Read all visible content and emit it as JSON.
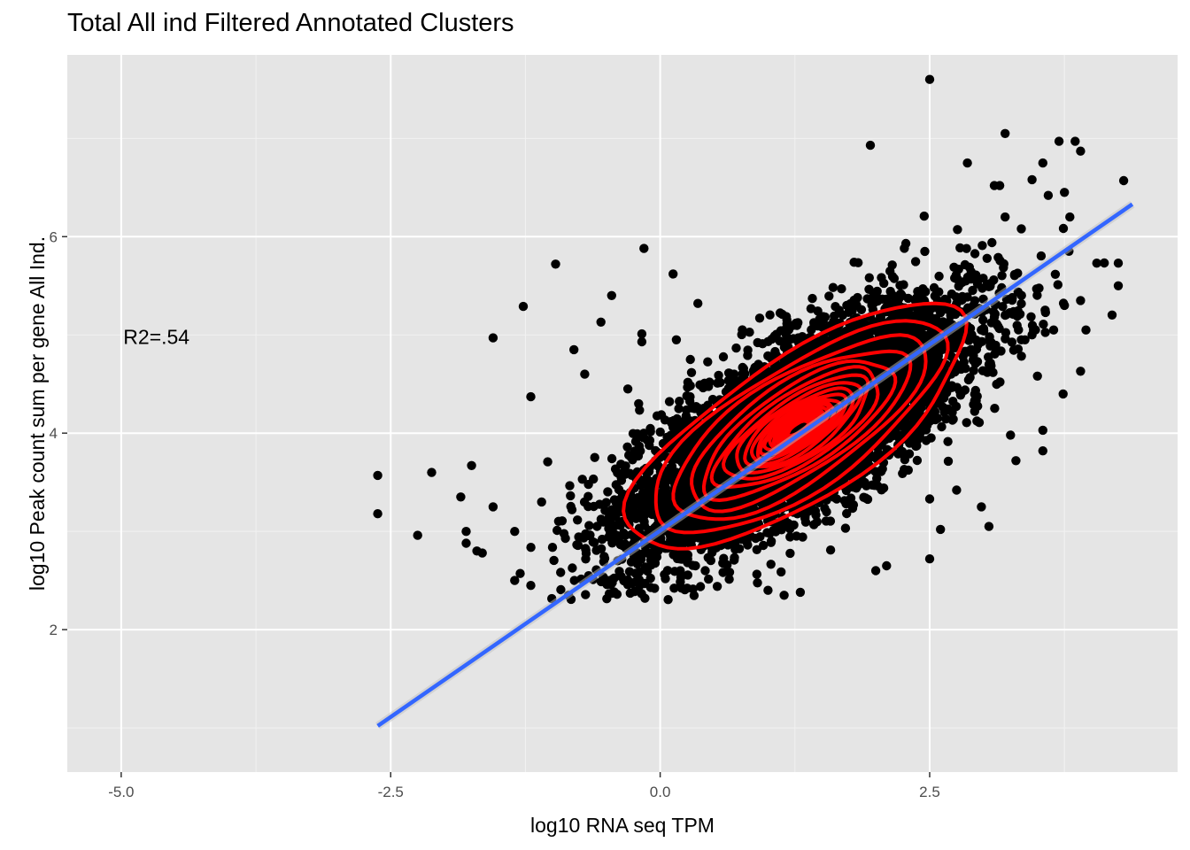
{
  "chart_data": {
    "type": "scatter",
    "title": "Total All ind Filtered Annotated Clusters",
    "xlabel": "log10 RNA seq TPM",
    "ylabel": "log10 Peak count sum per gene All Ind.",
    "xlim": [
      -5.5,
      4.8
    ],
    "ylim": [
      0.55,
      7.85
    ],
    "x_ticks": [
      -5.0,
      -2.5,
      0.0,
      2.5
    ],
    "x_tick_labels": [
      "-5.0",
      "-2.5",
      "0.0",
      "2.5"
    ],
    "y_ticks": [
      2,
      4,
      6
    ],
    "y_tick_labels": [
      "2",
      "4",
      "6"
    ],
    "grid": true,
    "annotation": {
      "text": "R2=.54",
      "x": -4.98,
      "y": 4.98
    },
    "regression_line": {
      "x": [
        -2.62,
        4.38
      ],
      "y": [
        1.02,
        6.33
      ],
      "color": "#3366ff"
    },
    "points": {
      "color": "#000000",
      "n_cloud": 6500,
      "cloud_center": [
        1.28,
        4.05
      ],
      "cloud_sd": [
        0.78,
        0.62
      ],
      "cloud_correlation": 0.74,
      "explicit": [
        [
          -2.62,
          3.57
        ],
        [
          -2.62,
          3.18
        ],
        [
          -2.25,
          2.96
        ],
        [
          -2.12,
          3.6
        ],
        [
          -1.85,
          3.35
        ],
        [
          -1.75,
          3.67
        ],
        [
          -1.55,
          4.97
        ],
        [
          -1.27,
          5.29
        ],
        [
          -1.2,
          4.37
        ],
        [
          -0.97,
          5.72
        ],
        [
          -0.8,
          4.85
        ],
        [
          -0.55,
          5.13
        ],
        [
          -0.45,
          5.4
        ],
        [
          -0.15,
          5.88
        ],
        [
          -0.17,
          5.01
        ],
        [
          -0.17,
          4.93
        ],
        [
          0.12,
          5.62
        ],
        [
          0.15,
          4.95
        ],
        [
          0.35,
          5.32
        ],
        [
          0.28,
          4.75
        ],
        [
          1.95,
          6.93
        ],
        [
          2.5,
          7.6
        ],
        [
          2.45,
          5.35
        ],
        [
          3.2,
          7.05
        ],
        [
          3.55,
          6.75
        ],
        [
          3.7,
          6.97
        ],
        [
          3.85,
          6.97
        ],
        [
          3.9,
          6.87
        ],
        [
          4.3,
          6.57
        ],
        [
          4.05,
          5.73
        ],
        [
          3.95,
          5.05
        ],
        [
          3.9,
          4.63
        ],
        [
          3.5,
          4.58
        ],
        [
          3.55,
          4.03
        ],
        [
          3.55,
          3.82
        ],
        [
          3.3,
          3.72
        ],
        [
          3.25,
          3.98
        ],
        [
          3.05,
          3.05
        ],
        [
          2.98,
          3.25
        ],
        [
          2.75,
          3.42
        ],
        [
          2.5,
          3.33
        ],
        [
          2.5,
          2.72
        ],
        [
          2.6,
          3.02
        ],
        [
          2.1,
          2.65
        ],
        [
          2.0,
          2.6
        ],
        [
          1.0,
          2.4
        ],
        [
          1.15,
          2.35
        ],
        [
          1.3,
          2.38
        ],
        [
          -0.45,
          2.37
        ],
        [
          -0.4,
          2.36
        ],
        [
          -0.85,
          2.35
        ],
        [
          -1.35,
          2.5
        ],
        [
          -1.2,
          2.45
        ],
        [
          -1.65,
          2.78
        ],
        [
          -1.7,
          2.8
        ],
        [
          -1.8,
          3.0
        ],
        [
          -1.8,
          2.88
        ],
        [
          -1.55,
          3.25
        ],
        [
          -1.35,
          3.0
        ],
        [
          -1.1,
          3.3
        ],
        [
          -0.7,
          4.6
        ],
        [
          -0.3,
          4.45
        ],
        [
          -0.2,
          4.3
        ],
        [
          3.15,
          6.52
        ],
        [
          3.1,
          6.52
        ],
        [
          3.2,
          6.2
        ],
        [
          3.45,
          6.58
        ],
        [
          3.6,
          6.42
        ],
        [
          3.75,
          6.45
        ],
        [
          3.8,
          6.2
        ],
        [
          3.35,
          6.08
        ],
        [
          3.2,
          5.2
        ],
        [
          3.35,
          4.95
        ],
        [
          3.65,
          5.05
        ],
        [
          3.75,
          5.3
        ],
        [
          3.9,
          5.35
        ],
        [
          3.45,
          5.0
        ],
        [
          4.25,
          5.73
        ],
        [
          4.25,
          5.5
        ],
        [
          2.85,
          6.75
        ]
      ]
    },
    "density_contours": {
      "color": "#ff0000",
      "center": [
        1.28,
        4.05
      ],
      "sd": [
        0.78,
        0.62
      ],
      "correlation": 0.74,
      "levels": 24
    }
  }
}
